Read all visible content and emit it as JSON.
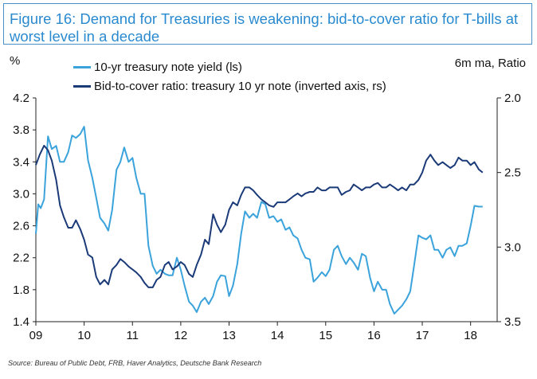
{
  "title": "Figure 16: Demand for Treasuries is weakening: bid-to-cover ratio for T-bills at worst level in a decade",
  "units_left": "%",
  "units_right": "6m ma, Ratio",
  "source": "Source: Bureau of Public Debt, FRB, Haver Analytics, Deutsche Bank Research",
  "colors": {
    "yield": "#3ba3dc",
    "btc": "#1a3a78",
    "axis": "#222222"
  },
  "chart_data": {
    "type": "line",
    "title": "Demand for Treasuries is weakening: bid-to-cover ratio for T-bills at worst level in a decade",
    "x_range": [
      2009.0,
      2018.55
    ],
    "x_ticks": [
      2009,
      2010,
      2011,
      2012,
      2013,
      2014,
      2015,
      2016,
      2017,
      2018
    ],
    "x_tick_labels": [
      "09",
      "10",
      "11",
      "12",
      "13",
      "14",
      "15",
      "16",
      "17",
      "18"
    ],
    "y_left": {
      "label": "%",
      "range": [
        1.4,
        4.2
      ],
      "ticks": [
        1.4,
        1.8,
        2.2,
        2.6,
        3.0,
        3.4,
        3.8,
        4.2
      ],
      "tick_labels": [
        "1.4",
        "1.8",
        "2.2",
        "2.6",
        "3.0",
        "3.4",
        "3.8",
        "4.2"
      ]
    },
    "y_right": {
      "label": "6m ma, Ratio",
      "range": [
        2.0,
        3.5
      ],
      "inverted": true,
      "ticks": [
        2.0,
        2.5,
        3.0,
        3.5
      ],
      "tick_labels": [
        "2.0",
        "2.5",
        "3.0",
        "3.5"
      ]
    },
    "series": [
      {
        "name": "10-yr treasury note yield (ls)",
        "axis": "left",
        "x": [
          2009.0,
          2009.05,
          2009.1,
          2009.17,
          2009.25,
          2009.33,
          2009.42,
          2009.5,
          2009.58,
          2009.67,
          2009.75,
          2009.83,
          2009.92,
          2010.0,
          2010.08,
          2010.17,
          2010.25,
          2010.33,
          2010.42,
          2010.5,
          2010.58,
          2010.67,
          2010.75,
          2010.83,
          2010.92,
          2011.0,
          2011.08,
          2011.17,
          2011.25,
          2011.33,
          2011.42,
          2011.5,
          2011.58,
          2011.67,
          2011.75,
          2011.83,
          2011.92,
          2012.0,
          2012.08,
          2012.17,
          2012.25,
          2012.33,
          2012.42,
          2012.5,
          2012.58,
          2012.67,
          2012.75,
          2012.83,
          2012.92,
          2013.0,
          2013.08,
          2013.17,
          2013.25,
          2013.33,
          2013.42,
          2013.5,
          2013.58,
          2013.67,
          2013.75,
          2013.83,
          2013.92,
          2014.0,
          2014.08,
          2014.17,
          2014.25,
          2014.33,
          2014.42,
          2014.5,
          2014.58,
          2014.67,
          2014.75,
          2014.83,
          2014.92,
          2015.0,
          2015.08,
          2015.17,
          2015.25,
          2015.33,
          2015.42,
          2015.5,
          2015.58,
          2015.67,
          2015.75,
          2015.83,
          2015.92,
          2016.0,
          2016.08,
          2016.17,
          2016.25,
          2016.33,
          2016.42,
          2016.5,
          2016.58,
          2016.67,
          2016.75,
          2016.83,
          2016.92,
          2017.0,
          2017.08,
          2017.17,
          2017.25,
          2017.33,
          2017.42,
          2017.5,
          2017.58,
          2017.67,
          2017.75,
          2017.83,
          2017.92,
          2018.0,
          2018.08,
          2018.17,
          2018.25
        ],
        "values": [
          2.5,
          2.87,
          2.82,
          2.93,
          3.72,
          3.56,
          3.6,
          3.4,
          3.4,
          3.52,
          3.73,
          3.7,
          3.75,
          3.84,
          3.42,
          3.2,
          2.95,
          2.7,
          2.63,
          2.54,
          2.8,
          3.3,
          3.4,
          3.58,
          3.4,
          3.45,
          3.2,
          3.0,
          3.0,
          2.35,
          2.1,
          2.0,
          2.05,
          2.0,
          1.98,
          1.98,
          2.2,
          2.05,
          1.85,
          1.65,
          1.6,
          1.52,
          1.65,
          1.7,
          1.62,
          1.72,
          1.9,
          1.98,
          1.97,
          1.72,
          1.85,
          2.12,
          2.5,
          2.78,
          2.7,
          2.75,
          2.7,
          2.9,
          2.87,
          2.7,
          2.72,
          2.65,
          2.68,
          2.55,
          2.58,
          2.48,
          2.44,
          2.3,
          2.2,
          2.18,
          1.9,
          1.95,
          2.02,
          1.97,
          2.05,
          2.3,
          2.35,
          2.22,
          2.12,
          2.2,
          2.14,
          2.05,
          2.25,
          2.22,
          1.95,
          1.78,
          1.9,
          1.8,
          1.8,
          1.62,
          1.5,
          1.55,
          1.6,
          1.68,
          1.78,
          2.1,
          2.48,
          2.45,
          2.43,
          2.48,
          2.3,
          2.3,
          2.2,
          2.3,
          2.33,
          2.22,
          2.35,
          2.35,
          2.38,
          2.6,
          2.85,
          2.84,
          2.84
        ]
      },
      {
        "name": "Bid-to-cover ratio: treasury 10 yr note (inverted axis, rs)",
        "axis": "right",
        "inverted": true,
        "x": [
          2009.0,
          2009.08,
          2009.17,
          2009.25,
          2009.33,
          2009.42,
          2009.5,
          2009.58,
          2009.67,
          2009.75,
          2009.83,
          2009.92,
          2010.0,
          2010.08,
          2010.17,
          2010.25,
          2010.33,
          2010.42,
          2010.5,
          2010.58,
          2010.67,
          2010.75,
          2010.83,
          2010.92,
          2011.0,
          2011.08,
          2011.17,
          2011.25,
          2011.33,
          2011.42,
          2011.5,
          2011.58,
          2011.67,
          2011.75,
          2011.83,
          2011.92,
          2012.0,
          2012.08,
          2012.17,
          2012.25,
          2012.33,
          2012.42,
          2012.5,
          2012.58,
          2012.67,
          2012.75,
          2012.83,
          2012.92,
          2013.0,
          2013.08,
          2013.17,
          2013.25,
          2013.33,
          2013.42,
          2013.5,
          2013.58,
          2013.67,
          2013.75,
          2013.83,
          2013.92,
          2014.0,
          2014.08,
          2014.17,
          2014.25,
          2014.33,
          2014.42,
          2014.5,
          2014.58,
          2014.67,
          2014.75,
          2014.83,
          2014.92,
          2015.0,
          2015.08,
          2015.17,
          2015.25,
          2015.33,
          2015.42,
          2015.5,
          2015.58,
          2015.67,
          2015.75,
          2015.83,
          2015.92,
          2016.0,
          2016.08,
          2016.17,
          2016.25,
          2016.33,
          2016.42,
          2016.5,
          2016.58,
          2016.67,
          2016.75,
          2016.83,
          2016.92,
          2017.0,
          2017.08,
          2017.17,
          2017.25,
          2017.33,
          2017.42,
          2017.5,
          2017.58,
          2017.67,
          2017.75,
          2017.83,
          2017.92,
          2018.0,
          2018.08,
          2018.17,
          2018.25
        ],
        "values": [
          2.45,
          2.38,
          2.32,
          2.35,
          2.42,
          2.55,
          2.72,
          2.8,
          2.87,
          2.87,
          2.82,
          2.88,
          2.95,
          3.05,
          3.07,
          3.2,
          3.25,
          3.22,
          3.25,
          3.15,
          3.12,
          3.08,
          3.1,
          3.13,
          3.15,
          3.17,
          3.2,
          3.24,
          3.27,
          3.27,
          3.22,
          3.2,
          3.12,
          3.1,
          3.15,
          3.13,
          3.1,
          3.12,
          3.18,
          3.2,
          3.12,
          3.05,
          2.95,
          2.98,
          2.78,
          2.85,
          2.9,
          2.85,
          2.75,
          2.7,
          2.72,
          2.65,
          2.6,
          2.6,
          2.62,
          2.65,
          2.68,
          2.7,
          2.72,
          2.73,
          2.7,
          2.7,
          2.7,
          2.68,
          2.66,
          2.64,
          2.66,
          2.64,
          2.63,
          2.63,
          2.6,
          2.62,
          2.62,
          2.6,
          2.6,
          2.6,
          2.65,
          2.63,
          2.62,
          2.58,
          2.6,
          2.62,
          2.6,
          2.6,
          2.58,
          2.57,
          2.6,
          2.6,
          2.58,
          2.6,
          2.62,
          2.6,
          2.62,
          2.58,
          2.58,
          2.55,
          2.5,
          2.42,
          2.38,
          2.42,
          2.45,
          2.43,
          2.45,
          2.47,
          2.45,
          2.4,
          2.42,
          2.42,
          2.45,
          2.43,
          2.48,
          2.5
        ]
      }
    ]
  }
}
